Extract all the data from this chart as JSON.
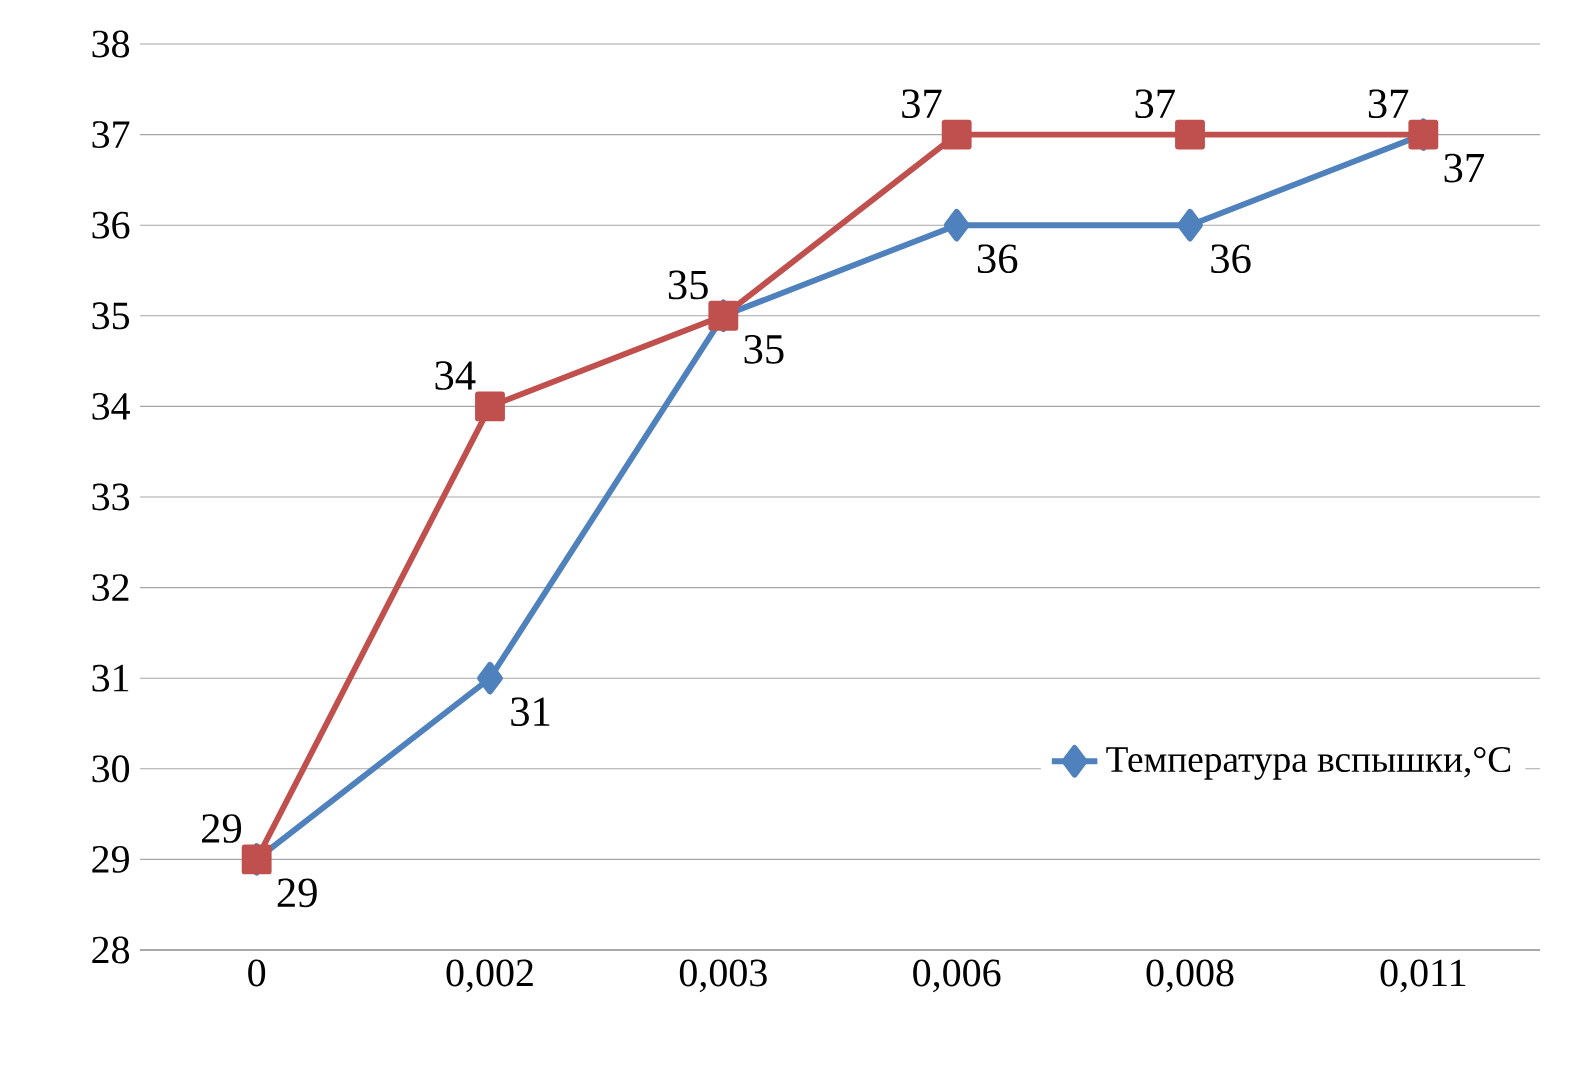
{
  "chart_data": {
    "type": "line",
    "categories": [
      "0",
      "0,002",
      "0,003",
      "0,006",
      "0,008",
      "0,011"
    ],
    "series": [
      {
        "name": "Температура вспышки,°C",
        "color": "#4f81bd",
        "marker": "diamond",
        "values": [
          29,
          31,
          35,
          36,
          36,
          37
        ]
      },
      {
        "color": "#c0504d",
        "marker": "square",
        "values": [
          29,
          34,
          35,
          37,
          37,
          37
        ]
      }
    ],
    "ylim": [
      28,
      38
    ],
    "yticks": [
      28,
      29,
      30,
      31,
      32,
      33,
      34,
      35,
      36,
      37,
      38
    ],
    "grid": "y",
    "legend": "bottom right",
    "data_labels": true
  }
}
